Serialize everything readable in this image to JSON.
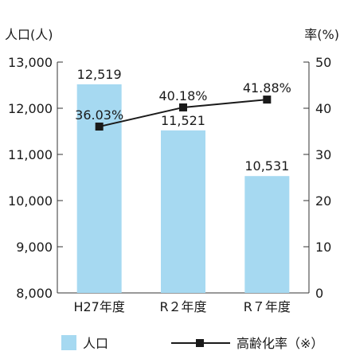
{
  "chart_data": {
    "type": "bar",
    "categories": [
      "H27年度",
      "R２年度",
      "R７年度"
    ],
    "series": [
      {
        "name": "人口",
        "type": "bar",
        "axis": "left",
        "values": [
          12519,
          11521,
          10531
        ],
        "labels": [
          "12,519",
          "11,521",
          "10,531"
        ],
        "color": "#a6d9f1"
      },
      {
        "name": "高齢化率（※）",
        "type": "line",
        "axis": "right",
        "values": [
          36.03,
          40.18,
          41.88
        ],
        "labels": [
          "36.03%",
          "40.18%",
          "41.88%"
        ],
        "color": "#1a1a1a"
      }
    ],
    "y_left": {
      "label": "人口(人)",
      "ylim": [
        8000,
        13000
      ],
      "ticks": [
        8000,
        9000,
        10000,
        11000,
        12000,
        13000
      ],
      "tick_labels": [
        "8,000",
        "9,000",
        "10,000",
        "11,000",
        "12,000",
        "13,000"
      ]
    },
    "y_right": {
      "label": "率(%)",
      "ylim": [
        0,
        50
      ],
      "ticks": [
        0,
        10,
        20,
        30,
        40,
        50
      ],
      "tick_labels": [
        "0",
        "10",
        "20",
        "30",
        "40",
        "50"
      ]
    },
    "legend": {
      "position": "bottom",
      "entries": [
        "人口",
        "高齢化率（※）"
      ]
    },
    "grid": false
  }
}
